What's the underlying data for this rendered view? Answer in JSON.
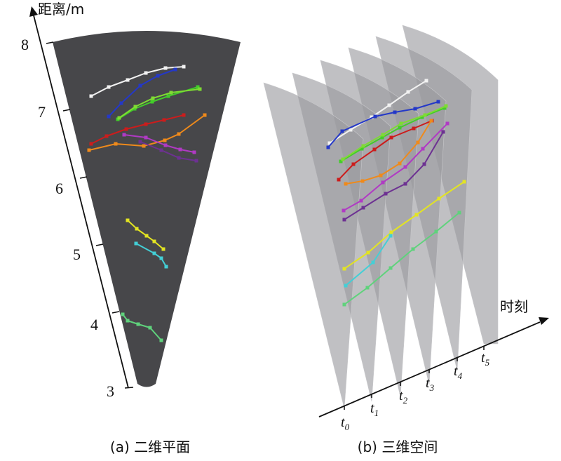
{
  "panel_a": {
    "axis_label": "距离/m",
    "ticks": [
      "8",
      "7",
      "6",
      "5",
      "4",
      "3"
    ],
    "caption": "(a) 二维平面"
  },
  "panel_b": {
    "axis_label": "时刻",
    "time_labels": [
      {
        "base": "t",
        "sub": "0"
      },
      {
        "base": "t",
        "sub": "1"
      },
      {
        "base": "t",
        "sub": "2"
      },
      {
        "base": "t",
        "sub": "3"
      },
      {
        "base": "t",
        "sub": "4"
      },
      {
        "base": "t",
        "sub": "5"
      }
    ],
    "caption": "(b) 三维空间"
  },
  "colors": {
    "background": "#ffffff",
    "sector_fill": "#47474a",
    "slice_fill": "#9a9a9e",
    "axis": "#111111"
  },
  "tracks": [
    {
      "color": "#f2f2f2",
      "a": [
        [
          130,
          137
        ],
        [
          155,
          124
        ],
        [
          182,
          114
        ],
        [
          208,
          104
        ],
        [
          236,
          97
        ],
        [
          262,
          95
        ]
      ],
      "b": [
        [
          470,
          204
        ],
        [
          500,
          185
        ],
        [
          530,
          167
        ],
        [
          555,
          150
        ],
        [
          582,
          131
        ],
        [
          608,
          115
        ]
      ]
    },
    {
      "color": "#2438c8",
      "a": [
        [
          155,
          166
        ],
        [
          173,
          147
        ],
        [
          200,
          122
        ],
        [
          225,
          108
        ],
        [
          250,
          99
        ]
      ],
      "b": [
        [
          468,
          210
        ],
        [
          488,
          187
        ],
        [
          535,
          166
        ],
        [
          563,
          160
        ],
        [
          592,
          155
        ],
        [
          625,
          145
        ]
      ]
    },
    {
      "color": "#42cc2a",
      "a": [
        [
          168,
          170
        ],
        [
          192,
          155
        ],
        [
          217,
          145
        ],
        [
          240,
          137
        ],
        [
          282,
          124
        ]
      ],
      "b": [
        [
          486,
          230
        ],
        [
          516,
          212
        ],
        [
          545,
          196
        ],
        [
          570,
          182
        ],
        [
          602,
          167
        ],
        [
          634,
          154
        ]
      ]
    },
    {
      "color": "#7edb33",
      "a": [
        [
          170,
          168
        ],
        [
          193,
          152
        ],
        [
          218,
          140
        ],
        [
          244,
          132
        ],
        [
          285,
          127
        ]
      ],
      "b": [
        [
          489,
          227
        ],
        [
          518,
          208
        ],
        [
          546,
          192
        ],
        [
          572,
          176
        ],
        [
          606,
          164
        ],
        [
          636,
          151
        ]
      ]
    },
    {
      "color": "#cc1c1c",
      "a": [
        [
          130,
          205
        ],
        [
          152,
          194
        ],
        [
          180,
          184
        ],
        [
          208,
          177
        ],
        [
          234,
          171
        ],
        [
          262,
          164
        ]
      ],
      "b": [
        [
          483,
          256
        ],
        [
          504,
          234
        ],
        [
          534,
          213
        ],
        [
          558,
          196
        ],
        [
          590,
          183
        ],
        [
          616,
          172
        ]
      ]
    },
    {
      "color": "#ef8a1b",
      "a": [
        [
          127,
          214
        ],
        [
          165,
          205
        ],
        [
          205,
          208
        ],
        [
          235,
          200
        ],
        [
          255,
          191
        ],
        [
          292,
          164
        ]
      ],
      "b": [
        [
          493,
          262
        ],
        [
          517,
          258
        ],
        [
          543,
          250
        ],
        [
          570,
          233
        ],
        [
          596,
          203
        ],
        [
          615,
          172
        ]
      ]
    },
    {
      "color": "#b03ac4",
      "a": [
        [
          177,
          192
        ],
        [
          208,
          196
        ],
        [
          236,
          207
        ],
        [
          257,
          213
        ],
        [
          277,
          217
        ]
      ],
      "b": [
        [
          490,
          300
        ],
        [
          515,
          286
        ],
        [
          546,
          260
        ],
        [
          578,
          238
        ],
        [
          603,
          212
        ],
        [
          638,
          176
        ]
      ]
    },
    {
      "color": "#6d3192",
      "a": [
        [
          200,
          202
        ],
        [
          230,
          214
        ],
        [
          255,
          225
        ],
        [
          280,
          229
        ]
      ],
      "b": [
        [
          491,
          313
        ],
        [
          518,
          296
        ],
        [
          550,
          276
        ],
        [
          578,
          262
        ],
        [
          605,
          234
        ],
        [
          632,
          188
        ]
      ]
    },
    {
      "color": "#e3e422",
      "a": [
        [
          182,
          314
        ],
        [
          195,
          326
        ],
        [
          209,
          336
        ],
        [
          220,
          344
        ],
        [
          233,
          355
        ]
      ],
      "b": [
        [
          491,
          383
        ],
        [
          525,
          360
        ],
        [
          558,
          331
        ],
        [
          594,
          306
        ],
        [
          626,
          283
        ],
        [
          662,
          259
        ]
      ]
    },
    {
      "color": "#43cfd6",
      "a": [
        [
          194,
          347
        ],
        [
          220,
          361
        ],
        [
          230,
          368
        ],
        [
          237,
          380
        ]
      ],
      "b": [
        [
          493,
          407
        ],
        [
          532,
          374
        ],
        [
          557,
          336
        ]
      ]
    },
    {
      "color": "#5fd27c",
      "a": [
        [
          175,
          448
        ],
        [
          182,
          457
        ],
        [
          197,
          462
        ],
        [
          214,
          467
        ],
        [
          230,
          485
        ]
      ],
      "b": [
        [
          491,
          434
        ],
        [
          524,
          410
        ],
        [
          557,
          382
        ],
        [
          589,
          355
        ],
        [
          622,
          330
        ],
        [
          655,
          303
        ]
      ]
    }
  ]
}
